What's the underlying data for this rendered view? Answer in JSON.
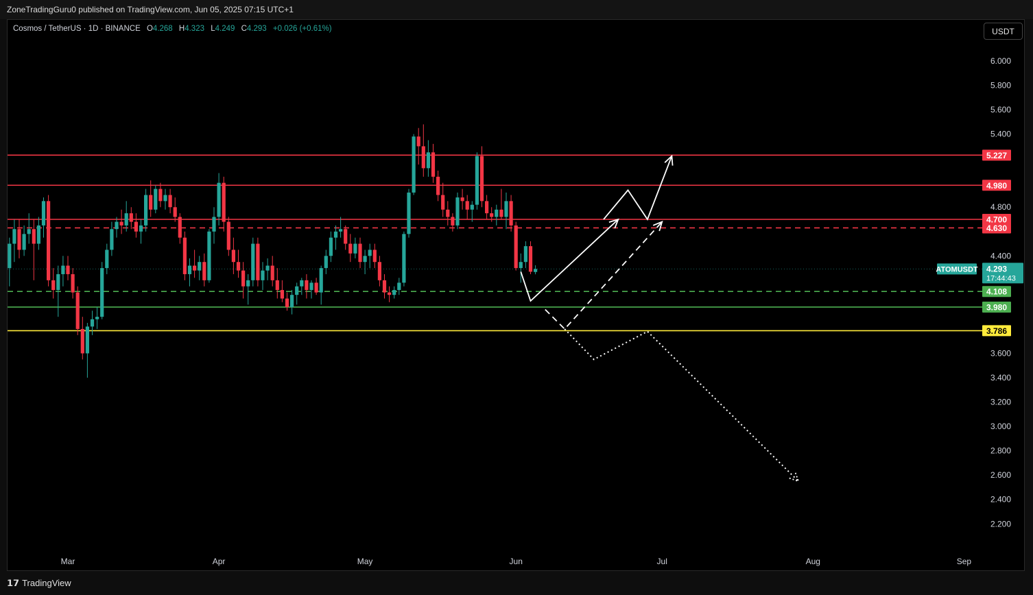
{
  "header": {
    "published": "ZoneTradingGuru0 published on TradingView.com, Jun 05, 2025 07:15 UTC+1"
  },
  "legend": {
    "symbol": "Cosmos / TetherUS · 1D · BINANCE",
    "o_label": "O",
    "o": "4.268",
    "h_label": "H",
    "h": "4.323",
    "l_label": "L",
    "l": "4.249",
    "c_label": "C",
    "c": "4.293",
    "change": "+0.026 (+0.61%)"
  },
  "currency_button": "USDT",
  "footer": {
    "brand_mark": "𝟭𝟳",
    "brand": "TradingView"
  },
  "colors": {
    "up": "#26a69a",
    "down": "#f23645",
    "resistance": "#f23645",
    "support": "#4caf50",
    "yellow": "#ffeb3b",
    "arrow": "#ffffff"
  },
  "chart_data": {
    "type": "candlestick",
    "ylim": [
      2.05,
      6.2
    ],
    "y_ticks": [
      "2.200",
      "2.400",
      "2.600",
      "2.800",
      "3.000",
      "3.200",
      "3.400",
      "3.600",
      "4.400",
      "4.800",
      "5.400",
      "5.600",
      "5.800",
      "6.000"
    ],
    "x_ticks": [
      {
        "label": "Mar",
        "date": "2025-03-01"
      },
      {
        "label": "Apr",
        "date": "2025-04-01"
      },
      {
        "label": "May",
        "date": "2025-05-01"
      },
      {
        "label": "Jun",
        "date": "2025-06-01"
      },
      {
        "label": "Jul",
        "date": "2025-07-01"
      },
      {
        "label": "Aug",
        "date": "2025-08-01"
      },
      {
        "label": "Sep",
        "date": "2025-09-01"
      }
    ],
    "horizontal_levels": [
      {
        "value": 5.227,
        "label": "5.227",
        "style": "solid",
        "color": "#f23645"
      },
      {
        "value": 4.98,
        "label": "4.980",
        "style": "solid",
        "color": "#f23645"
      },
      {
        "value": 4.7,
        "label": "4.700",
        "style": "solid",
        "color": "#f23645"
      },
      {
        "value": 4.63,
        "label": "4.630",
        "style": "dashed",
        "color": "#f23645"
      },
      {
        "value": 4.108,
        "label": "4.108",
        "style": "dashed",
        "color": "#4caf50"
      },
      {
        "value": 3.98,
        "label": "3.980",
        "style": "solid",
        "color": "#4caf50"
      },
      {
        "value": 3.786,
        "label": "3.786",
        "style": "solid",
        "color": "#ffeb3b"
      }
    ],
    "last_price": {
      "symbol": "ATOMUSDT",
      "value": 4.293,
      "label": "4.293",
      "countdown": "17:44:43"
    },
    "candles": [
      {
        "date": "2025-02-06",
        "o": 4.75,
        "h": 4.92,
        "l": 4.6,
        "c": 4.85
      },
      {
        "date": "2025-02-07",
        "o": 4.85,
        "h": 4.88,
        "l": 4.55,
        "c": 4.6
      },
      {
        "date": "2025-02-08",
        "o": 4.6,
        "h": 4.75,
        "l": 4.5,
        "c": 4.72
      },
      {
        "date": "2025-02-09",
        "o": 4.72,
        "h": 4.8,
        "l": 4.55,
        "c": 4.58
      },
      {
        "date": "2025-02-10",
        "o": 4.58,
        "h": 4.85,
        "l": 4.52,
        "c": 4.8
      },
      {
        "date": "2025-02-11",
        "o": 4.8,
        "h": 4.98,
        "l": 4.68,
        "c": 4.92
      },
      {
        "date": "2025-02-12",
        "o": 4.92,
        "h": 5.05,
        "l": 4.75,
        "c": 4.78
      },
      {
        "date": "2025-02-13",
        "o": 4.78,
        "h": 5.0,
        "l": 4.7,
        "c": 4.95
      },
      {
        "date": "2025-02-14",
        "o": 4.95,
        "h": 5.02,
        "l": 4.85,
        "c": 4.88
      },
      {
        "date": "2025-02-15",
        "o": 4.88,
        "h": 4.95,
        "l": 4.7,
        "c": 4.75
      },
      {
        "date": "2025-02-16",
        "o": 4.75,
        "h": 4.82,
        "l": 4.25,
        "c": 4.3
      },
      {
        "date": "2025-02-17",
        "o": 4.3,
        "h": 4.55,
        "l": 4.15,
        "c": 4.5
      },
      {
        "date": "2025-02-18",
        "o": 4.5,
        "h": 4.7,
        "l": 4.35,
        "c": 4.62
      },
      {
        "date": "2025-02-19",
        "o": 4.62,
        "h": 4.7,
        "l": 4.38,
        "c": 4.45
      },
      {
        "date": "2025-02-20",
        "o": 4.45,
        "h": 4.65,
        "l": 4.4,
        "c": 4.58
      },
      {
        "date": "2025-02-21",
        "o": 4.58,
        "h": 4.75,
        "l": 4.5,
        "c": 4.62
      },
      {
        "date": "2025-02-22",
        "o": 4.62,
        "h": 4.7,
        "l": 4.2,
        "c": 4.5
      },
      {
        "date": "2025-02-23",
        "o": 4.5,
        "h": 4.72,
        "l": 4.45,
        "c": 4.65
      },
      {
        "date": "2025-02-24",
        "o": 4.65,
        "h": 4.88,
        "l": 4.55,
        "c": 4.85
      },
      {
        "date": "2025-02-25",
        "o": 4.85,
        "h": 4.9,
        "l": 4.15,
        "c": 4.2
      },
      {
        "date": "2025-02-26",
        "o": 4.2,
        "h": 4.3,
        "l": 4.05,
        "c": 4.12
      },
      {
        "date": "2025-02-27",
        "o": 4.12,
        "h": 4.32,
        "l": 3.9,
        "c": 4.25
      },
      {
        "date": "2025-02-28",
        "o": 4.25,
        "h": 4.4,
        "l": 4.15,
        "c": 4.32
      },
      {
        "date": "2025-03-01",
        "o": 4.32,
        "h": 4.4,
        "l": 4.2,
        "c": 4.25
      },
      {
        "date": "2025-03-02",
        "o": 4.25,
        "h": 4.3,
        "l": 4.05,
        "c": 4.1
      },
      {
        "date": "2025-03-03",
        "o": 4.1,
        "h": 4.15,
        "l": 3.75,
        "c": 3.8
      },
      {
        "date": "2025-03-04",
        "o": 3.8,
        "h": 3.9,
        "l": 3.55,
        "c": 3.6
      },
      {
        "date": "2025-03-05",
        "o": 3.6,
        "h": 3.85,
        "l": 3.4,
        "c": 3.82
      },
      {
        "date": "2025-03-06",
        "o": 3.82,
        "h": 3.95,
        "l": 3.75,
        "c": 3.88
      },
      {
        "date": "2025-03-07",
        "o": 3.88,
        "h": 3.98,
        "l": 3.8,
        "c": 3.9
      },
      {
        "date": "2025-03-08",
        "o": 3.9,
        "h": 4.35,
        "l": 3.88,
        "c": 4.3
      },
      {
        "date": "2025-03-09",
        "o": 4.3,
        "h": 4.5,
        "l": 4.25,
        "c": 4.45
      },
      {
        "date": "2025-03-10",
        "o": 4.45,
        "h": 4.68,
        "l": 4.4,
        "c": 4.62
      },
      {
        "date": "2025-03-11",
        "o": 4.62,
        "h": 4.72,
        "l": 4.55,
        "c": 4.68
      },
      {
        "date": "2025-03-12",
        "o": 4.68,
        "h": 4.78,
        "l": 4.58,
        "c": 4.65
      },
      {
        "date": "2025-03-13",
        "o": 4.65,
        "h": 4.85,
        "l": 4.6,
        "c": 4.75
      },
      {
        "date": "2025-03-14",
        "o": 4.75,
        "h": 4.8,
        "l": 4.62,
        "c": 4.68
      },
      {
        "date": "2025-03-15",
        "o": 4.68,
        "h": 4.75,
        "l": 4.55,
        "c": 4.6
      },
      {
        "date": "2025-03-16",
        "o": 4.6,
        "h": 4.7,
        "l": 4.5,
        "c": 4.65
      },
      {
        "date": "2025-03-17",
        "o": 4.65,
        "h": 4.95,
        "l": 4.6,
        "c": 4.9
      },
      {
        "date": "2025-03-18",
        "o": 4.9,
        "h": 5.02,
        "l": 4.72,
        "c": 4.78
      },
      {
        "date": "2025-03-19",
        "o": 4.78,
        "h": 4.98,
        "l": 4.75,
        "c": 4.95
      },
      {
        "date": "2025-03-20",
        "o": 4.95,
        "h": 5.0,
        "l": 4.8,
        "c": 4.85
      },
      {
        "date": "2025-03-21",
        "o": 4.85,
        "h": 4.95,
        "l": 4.78,
        "c": 4.9
      },
      {
        "date": "2025-03-22",
        "o": 4.9,
        "h": 4.95,
        "l": 4.75,
        "c": 4.8
      },
      {
        "date": "2025-03-23",
        "o": 4.8,
        "h": 4.88,
        "l": 4.68,
        "c": 4.72
      },
      {
        "date": "2025-03-24",
        "o": 4.72,
        "h": 4.75,
        "l": 4.5,
        "c": 4.55
      },
      {
        "date": "2025-03-25",
        "o": 4.55,
        "h": 4.6,
        "l": 4.2,
        "c": 4.25
      },
      {
        "date": "2025-03-26",
        "o": 4.25,
        "h": 4.38,
        "l": 4.15,
        "c": 4.32
      },
      {
        "date": "2025-03-27",
        "o": 4.32,
        "h": 4.45,
        "l": 4.22,
        "c": 4.28
      },
      {
        "date": "2025-03-28",
        "o": 4.28,
        "h": 4.4,
        "l": 4.2,
        "c": 4.35
      },
      {
        "date": "2025-03-29",
        "o": 4.35,
        "h": 4.42,
        "l": 4.15,
        "c": 4.2
      },
      {
        "date": "2025-03-30",
        "o": 4.2,
        "h": 4.62,
        "l": 4.18,
        "c": 4.6
      },
      {
        "date": "2025-03-31",
        "o": 4.6,
        "h": 4.8,
        "l": 4.5,
        "c": 4.72
      },
      {
        "date": "2025-04-01",
        "o": 4.72,
        "h": 5.08,
        "l": 4.65,
        "c": 5.0
      },
      {
        "date": "2025-04-02",
        "o": 5.0,
        "h": 5.05,
        "l": 4.6,
        "c": 4.68
      },
      {
        "date": "2025-04-03",
        "o": 4.68,
        "h": 4.72,
        "l": 4.4,
        "c": 4.45
      },
      {
        "date": "2025-04-04",
        "o": 4.45,
        "h": 4.55,
        "l": 4.25,
        "c": 4.35
      },
      {
        "date": "2025-04-05",
        "o": 4.35,
        "h": 4.45,
        "l": 4.22,
        "c": 4.28
      },
      {
        "date": "2025-04-06",
        "o": 4.28,
        "h": 4.35,
        "l": 4.05,
        "c": 4.15
      },
      {
        "date": "2025-04-07",
        "o": 4.15,
        "h": 4.25,
        "l": 4.0,
        "c": 4.2
      },
      {
        "date": "2025-04-08",
        "o": 4.2,
        "h": 4.55,
        "l": 4.15,
        "c": 4.5
      },
      {
        "date": "2025-04-09",
        "o": 4.5,
        "h": 4.55,
        "l": 4.15,
        "c": 4.2
      },
      {
        "date": "2025-04-10",
        "o": 4.2,
        "h": 4.35,
        "l": 4.12,
        "c": 4.28
      },
      {
        "date": "2025-04-11",
        "o": 4.28,
        "h": 4.38,
        "l": 4.2,
        "c": 4.32
      },
      {
        "date": "2025-04-12",
        "o": 4.32,
        "h": 4.4,
        "l": 4.15,
        "c": 4.2
      },
      {
        "date": "2025-04-13",
        "o": 4.2,
        "h": 4.3,
        "l": 4.05,
        "c": 4.12
      },
      {
        "date": "2025-04-14",
        "o": 4.12,
        "h": 4.2,
        "l": 4.02,
        "c": 4.05
      },
      {
        "date": "2025-04-15",
        "o": 4.05,
        "h": 4.1,
        "l": 3.95,
        "c": 3.98
      },
      {
        "date": "2025-04-16",
        "o": 3.98,
        "h": 4.12,
        "l": 3.92,
        "c": 4.08
      },
      {
        "date": "2025-04-17",
        "o": 4.08,
        "h": 4.18,
        "l": 4.0,
        "c": 4.15
      },
      {
        "date": "2025-04-18",
        "o": 4.15,
        "h": 4.22,
        "l": 4.08,
        "c": 4.2
      },
      {
        "date": "2025-04-19",
        "o": 4.2,
        "h": 4.25,
        "l": 4.05,
        "c": 4.12
      },
      {
        "date": "2025-04-20",
        "o": 4.12,
        "h": 4.2,
        "l": 4.05,
        "c": 4.18
      },
      {
        "date": "2025-04-21",
        "o": 4.18,
        "h": 4.22,
        "l": 4.08,
        "c": 4.1
      },
      {
        "date": "2025-04-22",
        "o": 4.1,
        "h": 4.32,
        "l": 4.0,
        "c": 4.3
      },
      {
        "date": "2025-04-23",
        "o": 4.3,
        "h": 4.45,
        "l": 4.25,
        "c": 4.4
      },
      {
        "date": "2025-04-24",
        "o": 4.4,
        "h": 4.6,
        "l": 4.35,
        "c": 4.55
      },
      {
        "date": "2025-04-25",
        "o": 4.55,
        "h": 4.65,
        "l": 4.45,
        "c": 4.6
      },
      {
        "date": "2025-04-26",
        "o": 4.6,
        "h": 4.72,
        "l": 4.55,
        "c": 4.62
      },
      {
        "date": "2025-04-27",
        "o": 4.62,
        "h": 4.65,
        "l": 4.45,
        "c": 4.5
      },
      {
        "date": "2025-04-28",
        "o": 4.5,
        "h": 4.58,
        "l": 4.35,
        "c": 4.42
      },
      {
        "date": "2025-04-29",
        "o": 4.42,
        "h": 4.55,
        "l": 4.38,
        "c": 4.5
      },
      {
        "date": "2025-04-30",
        "o": 4.5,
        "h": 4.55,
        "l": 4.3,
        "c": 4.35
      },
      {
        "date": "2025-05-01",
        "o": 4.35,
        "h": 4.45,
        "l": 4.25,
        "c": 4.4
      },
      {
        "date": "2025-05-02",
        "o": 4.4,
        "h": 4.5,
        "l": 4.3,
        "c": 4.45
      },
      {
        "date": "2025-05-03",
        "o": 4.45,
        "h": 4.5,
        "l": 4.3,
        "c": 4.35
      },
      {
        "date": "2025-05-04",
        "o": 4.35,
        "h": 4.4,
        "l": 4.15,
        "c": 4.2
      },
      {
        "date": "2025-05-05",
        "o": 4.2,
        "h": 4.25,
        "l": 4.05,
        "c": 4.1
      },
      {
        "date": "2025-05-06",
        "o": 4.1,
        "h": 4.15,
        "l": 4.02,
        "c": 4.08
      },
      {
        "date": "2025-05-07",
        "o": 4.08,
        "h": 4.15,
        "l": 4.05,
        "c": 4.12
      },
      {
        "date": "2025-05-08",
        "o": 4.12,
        "h": 4.22,
        "l": 4.08,
        "c": 4.18
      },
      {
        "date": "2025-05-09",
        "o": 4.18,
        "h": 4.6,
        "l": 4.15,
        "c": 4.58
      },
      {
        "date": "2025-05-10",
        "o": 4.58,
        "h": 4.95,
        "l": 4.55,
        "c": 4.92
      },
      {
        "date": "2025-05-11",
        "o": 4.92,
        "h": 5.4,
        "l": 4.9,
        "c": 5.38
      },
      {
        "date": "2025-05-12",
        "o": 5.38,
        "h": 5.45,
        "l": 5.15,
        "c": 5.3
      },
      {
        "date": "2025-05-13",
        "o": 5.3,
        "h": 5.48,
        "l": 5.05,
        "c": 5.12
      },
      {
        "date": "2025-05-14",
        "o": 5.12,
        "h": 5.35,
        "l": 5.05,
        "c": 5.25
      },
      {
        "date": "2025-05-15",
        "o": 5.25,
        "h": 5.32,
        "l": 5.0,
        "c": 5.05
      },
      {
        "date": "2025-05-16",
        "o": 5.05,
        "h": 5.1,
        "l": 4.85,
        "c": 4.9
      },
      {
        "date": "2025-05-17",
        "o": 4.9,
        "h": 5.0,
        "l": 4.72,
        "c": 4.78
      },
      {
        "date": "2025-05-18",
        "o": 4.78,
        "h": 4.85,
        "l": 4.65,
        "c": 4.72
      },
      {
        "date": "2025-05-19",
        "o": 4.72,
        "h": 4.75,
        "l": 4.6,
        "c": 4.65
      },
      {
        "date": "2025-05-20",
        "o": 4.65,
        "h": 4.92,
        "l": 4.62,
        "c": 4.88
      },
      {
        "date": "2025-05-21",
        "o": 4.88,
        "h": 4.95,
        "l": 4.78,
        "c": 4.85
      },
      {
        "date": "2025-05-22",
        "o": 4.85,
        "h": 4.9,
        "l": 4.7,
        "c": 4.78
      },
      {
        "date": "2025-05-23",
        "o": 4.78,
        "h": 4.85,
        "l": 4.68,
        "c": 4.82
      },
      {
        "date": "2025-05-24",
        "o": 4.82,
        "h": 5.25,
        "l": 4.78,
        "c": 5.22
      },
      {
        "date": "2025-05-25",
        "o": 5.22,
        "h": 5.3,
        "l": 4.8,
        "c": 4.85
      },
      {
        "date": "2025-05-26",
        "o": 4.85,
        "h": 4.9,
        "l": 4.7,
        "c": 4.75
      },
      {
        "date": "2025-05-27",
        "o": 4.75,
        "h": 4.8,
        "l": 4.68,
        "c": 4.72
      },
      {
        "date": "2025-05-28",
        "o": 4.72,
        "h": 4.82,
        "l": 4.65,
        "c": 4.78
      },
      {
        "date": "2025-05-29",
        "o": 4.78,
        "h": 4.95,
        "l": 4.7,
        "c": 4.72
      },
      {
        "date": "2025-05-30",
        "o": 4.72,
        "h": 4.92,
        "l": 4.62,
        "c": 4.85
      },
      {
        "date": "2025-05-31",
        "o": 4.85,
        "h": 4.9,
        "l": 4.6,
        "c": 4.65
      },
      {
        "date": "2025-06-01",
        "o": 4.65,
        "h": 4.68,
        "l": 4.28,
        "c": 4.3
      },
      {
        "date": "2025-06-02",
        "o": 4.3,
        "h": 4.42,
        "l": 4.18,
        "c": 4.35
      },
      {
        "date": "2025-06-03",
        "o": 4.35,
        "h": 4.52,
        "l": 4.3,
        "c": 4.48
      },
      {
        "date": "2025-06-04",
        "o": 4.48,
        "h": 4.52,
        "l": 4.25,
        "c": 4.27
      },
      {
        "date": "2025-06-05",
        "o": 4.268,
        "h": 4.323,
        "l": 4.249,
        "c": 4.293
      }
    ],
    "projections": [
      {
        "style": "solid",
        "arrow": true,
        "points": [
          [
            "2025-06-02",
            4.27
          ],
          [
            "2025-06-04",
            4.03
          ],
          [
            "2025-06-22",
            4.7
          ]
        ]
      },
      {
        "style": "solid",
        "arrow": true,
        "points": [
          [
            "2025-06-19",
            4.7
          ],
          [
            "2025-06-24",
            4.94
          ],
          [
            "2025-06-28",
            4.7
          ],
          [
            "2025-07-03",
            5.22
          ]
        ]
      },
      {
        "style": "dashed",
        "arrow": true,
        "points": [
          [
            "2025-06-07",
            3.96
          ],
          [
            "2025-06-11",
            3.8
          ],
          [
            "2025-07-01",
            4.68
          ]
        ]
      },
      {
        "style": "dotted",
        "arrow": true,
        "points": [
          [
            "2025-06-11",
            3.8
          ],
          [
            "2025-06-17",
            3.55
          ],
          [
            "2025-06-28",
            3.78
          ],
          [
            "2025-07-29",
            2.55
          ]
        ]
      }
    ]
  }
}
